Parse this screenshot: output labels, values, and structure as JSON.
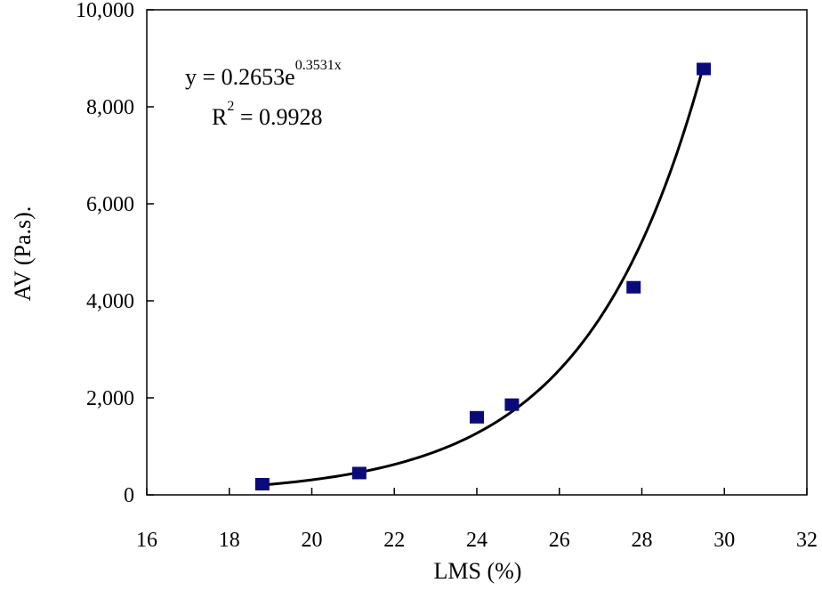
{
  "chart_data": {
    "type": "scatter",
    "title": "",
    "xlabel": "LMS (%)",
    "ylabel": "AV (Pa.s).",
    "xlim": [
      16,
      32
    ],
    "ylim": [
      0,
      10000
    ],
    "x_ticks": [
      16,
      18,
      20,
      22,
      24,
      26,
      28,
      30,
      32
    ],
    "y_ticks": [
      0,
      2000,
      4000,
      6000,
      8000,
      10000
    ],
    "x_tick_labels": [
      "16",
      "18",
      "20",
      "22",
      "24",
      "26",
      "28",
      "30",
      "32"
    ],
    "y_tick_labels": [
      "0",
      "2,000",
      "4,000",
      "6,000",
      "8,000",
      "10,000"
    ],
    "grid": false,
    "series": [
      {
        "name": "AV",
        "marker": "square",
        "color": "#0a0a7a",
        "x": [
          18.8,
          21.15,
          24.0,
          24.85,
          27.8,
          29.5
        ],
        "y": [
          220,
          450,
          1600,
          1860,
          4280,
          8780
        ]
      }
    ],
    "trendline": {
      "type": "exponential",
      "a": 0.2653,
      "b": 0.3531,
      "x_range": [
        18.8,
        29.5
      ],
      "color": "#000000"
    },
    "annotations": {
      "equation_base": "y = 0.2653e",
      "equation_exponent": "0.3531x",
      "r2_base": "R",
      "r2_exponent": "2",
      "r2_value": " = 0.9928"
    }
  }
}
